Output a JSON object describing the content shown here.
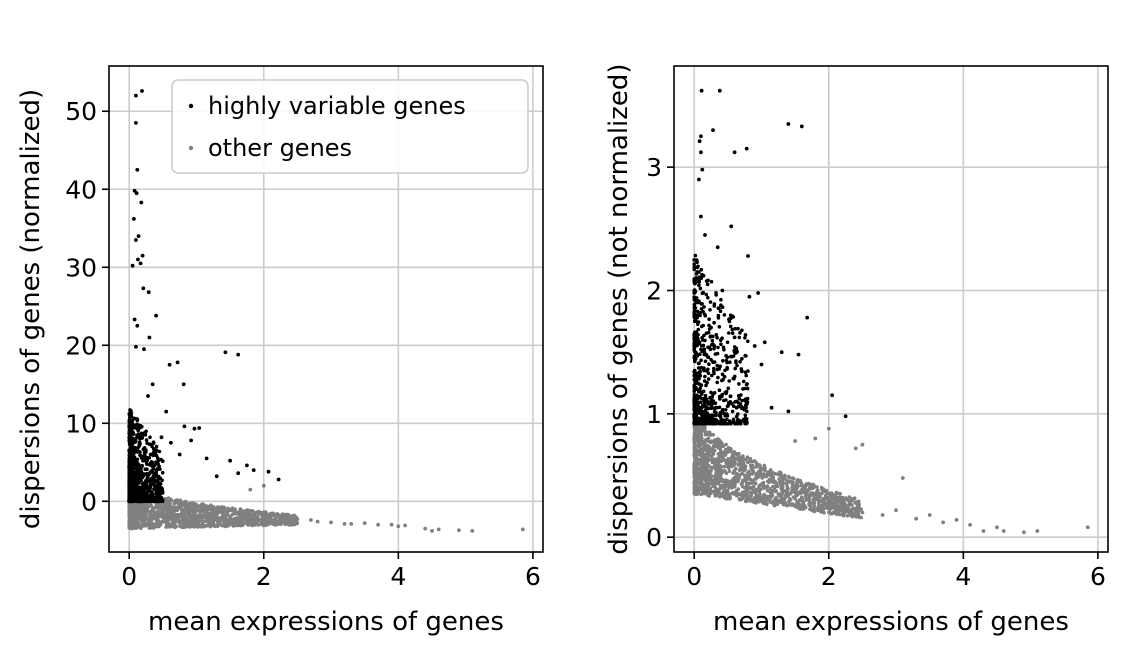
{
  "chart_data": [
    {
      "type": "scatter",
      "xlabel": "mean expressions of genes",
      "ylabel": "dispersions of genes (normalized)",
      "xlim": [
        -0.3,
        6.15
      ],
      "ylim": [
        -6.5,
        55.8
      ],
      "xticks": [
        0,
        2,
        4,
        6
      ],
      "xtick_labels": [
        "0",
        "2",
        "4",
        "6"
      ],
      "yticks": [
        0,
        10,
        20,
        30,
        40,
        50
      ],
      "ytick_labels": [
        "0",
        "10",
        "20",
        "30",
        "40",
        "50"
      ],
      "grid": true,
      "legend": {
        "placement": "upper right",
        "entries": [
          "highly variable genes",
          "other genes"
        ]
      },
      "series": [
        {
          "name": "highly variable genes",
          "color": "#000000",
          "points": [
            [
              0.1,
              52.0
            ],
            [
              0.19,
              52.6
            ],
            [
              0.1,
              48.5
            ],
            [
              0.12,
              42.5
            ],
            [
              0.08,
              39.8
            ],
            [
              0.11,
              39.5
            ],
            [
              0.18,
              38.3
            ],
            [
              0.07,
              36.2
            ],
            [
              0.14,
              34.0
            ],
            [
              0.1,
              33.5
            ],
            [
              0.2,
              31.5
            ],
            [
              0.13,
              31.0
            ],
            [
              0.17,
              30.5
            ],
            [
              0.05,
              30.2
            ],
            [
              0.21,
              27.3
            ],
            [
              0.29,
              26.8
            ],
            [
              0.4,
              23.8
            ],
            [
              0.08,
              23.3
            ],
            [
              0.12,
              22.5
            ],
            [
              0.3,
              21.0
            ],
            [
              0.1,
              19.8
            ],
            [
              0.22,
              19.5
            ],
            [
              0.72,
              17.8
            ],
            [
              0.6,
              17.5
            ],
            [
              1.43,
              19.1
            ],
            [
              1.62,
              18.8
            ],
            [
              0.81,
              15.0
            ],
            [
              0.35,
              15.0
            ],
            [
              0.28,
              13.5
            ],
            [
              1.04,
              9.4
            ],
            [
              0.97,
              9.3
            ],
            [
              0.82,
              9.6
            ],
            [
              0.92,
              7.8
            ],
            [
              1.5,
              5.2
            ],
            [
              1.75,
              4.6
            ],
            [
              1.85,
              4.0
            ],
            [
              2.07,
              3.8
            ],
            [
              2.22,
              2.8
            ],
            [
              1.3,
              3.2
            ],
            [
              1.15,
              5.5
            ],
            [
              1.62,
              3.6
            ],
            [
              0.55,
              11.5
            ],
            [
              0.48,
              8.2
            ],
            [
              0.62,
              7.5
            ],
            [
              0.75,
              6.0
            ]
          ],
          "dense_region": {
            "x_range": [
              0.0,
              0.5
            ],
            "y_range": [
              0.0,
              12.0
            ],
            "count": 900
          }
        },
        {
          "name": "other genes",
          "color": "#808080",
          "points": [
            [
              2.5,
              -2.3
            ],
            [
              2.8,
              -2.6
            ],
            [
              3.0,
              -2.7
            ],
            [
              3.3,
              -2.9
            ],
            [
              3.5,
              -2.8
            ],
            [
              3.7,
              -3.0
            ],
            [
              3.9,
              -3.0
            ],
            [
              4.0,
              -3.2
            ],
            [
              4.1,
              -3.1
            ],
            [
              4.4,
              -3.5
            ],
            [
              4.5,
              -3.8
            ],
            [
              4.6,
              -3.6
            ],
            [
              4.9,
              -3.7
            ],
            [
              5.1,
              -3.8
            ],
            [
              5.85,
              -3.6
            ],
            [
              2.3,
              -2.1
            ],
            [
              2.0,
              2.0
            ],
            [
              1.8,
              1.5
            ],
            [
              2.7,
              -2.4
            ],
            [
              3.2,
              -2.9
            ]
          ],
          "dense_band": {
            "x_range": [
              0.0,
              2.5
            ],
            "y_top": [
              2.5,
              -1.8
            ],
            "y_bottom": [
              -3.5,
              -3.0
            ],
            "count": 1400
          }
        }
      ]
    },
    {
      "type": "scatter",
      "xlabel": "mean expressions of genes",
      "ylabel": "dispersions of genes (not normalized)",
      "xlim": [
        -0.3,
        6.15
      ],
      "ylim": [
        -0.12,
        3.82
      ],
      "xticks": [
        0,
        2,
        4,
        6
      ],
      "xtick_labels": [
        "0",
        "2",
        "4",
        "6"
      ],
      "yticks": [
        0,
        1,
        2,
        3
      ],
      "ytick_labels": [
        "0",
        "1",
        "2",
        "3"
      ],
      "grid": true,
      "series": [
        {
          "name": "highly variable genes",
          "color": "#000000",
          "points": [
            [
              0.11,
              3.62
            ],
            [
              0.38,
              3.62
            ],
            [
              0.1,
              3.25
            ],
            [
              0.08,
              3.21
            ],
            [
              0.1,
              3.12
            ],
            [
              0.28,
              3.3
            ],
            [
              1.4,
              3.35
            ],
            [
              1.6,
              3.33
            ],
            [
              0.78,
              3.15
            ],
            [
              0.6,
              3.12
            ],
            [
              0.12,
              2.98
            ],
            [
              0.07,
              2.9
            ],
            [
              0.1,
              2.6
            ],
            [
              0.55,
              2.52
            ],
            [
              0.16,
              2.45
            ],
            [
              0.35,
              2.35
            ],
            [
              0.8,
              2.28
            ],
            [
              0.42,
              2.0
            ],
            [
              0.82,
              1.95
            ],
            [
              0.95,
              1.98
            ],
            [
              1.68,
              1.78
            ],
            [
              0.6,
              1.62
            ],
            [
              0.9,
              1.55
            ],
            [
              1.05,
              1.58
            ],
            [
              1.3,
              1.5
            ],
            [
              1.55,
              1.48
            ],
            [
              1.0,
              1.4
            ],
            [
              2.05,
              1.15
            ],
            [
              1.15,
              1.05
            ],
            [
              1.4,
              1.02
            ],
            [
              2.25,
              0.98
            ],
            [
              0.25,
              1.7
            ],
            [
              0.3,
              1.55
            ],
            [
              0.2,
              2.05
            ],
            [
              0.45,
              1.3
            ]
          ],
          "dense_region": {
            "x_range": [
              0.0,
              0.8
            ],
            "y_range": [
              0.92,
              2.3
            ],
            "count": 700
          }
        },
        {
          "name": "other genes",
          "color": "#808080",
          "points": [
            [
              2.5,
              0.2
            ],
            [
              2.8,
              0.18
            ],
            [
              3.0,
              0.22
            ],
            [
              3.1,
              0.48
            ],
            [
              3.3,
              0.15
            ],
            [
              3.5,
              0.18
            ],
            [
              3.7,
              0.12
            ],
            [
              3.9,
              0.14
            ],
            [
              4.1,
              0.1
            ],
            [
              4.3,
              0.05
            ],
            [
              4.5,
              0.08
            ],
            [
              4.6,
              0.05
            ],
            [
              4.9,
              0.04
            ],
            [
              5.1,
              0.05
            ],
            [
              5.85,
              0.08
            ],
            [
              2.0,
              0.88
            ],
            [
              2.5,
              0.75
            ],
            [
              2.4,
              0.72
            ],
            [
              1.8,
              0.8
            ],
            [
              1.5,
              0.78
            ]
          ],
          "dense_band": {
            "x_range": [
              0.0,
              2.5
            ],
            "y_top": [
              1.1,
              0.3
            ],
            "y_bottom": [
              0.35,
              0.15
            ],
            "count": 1400
          }
        }
      ]
    }
  ]
}
